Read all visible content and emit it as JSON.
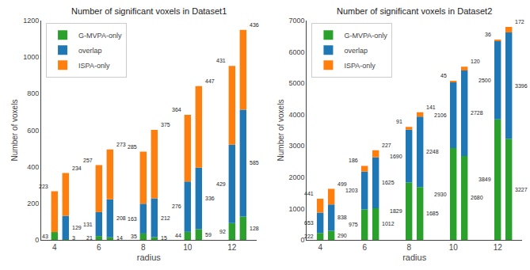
{
  "chart_data": [
    {
      "type": "bar",
      "stacked": true,
      "title": "Number of significant voxels in Dataset1",
      "xlabel": "radius",
      "ylabel": "Number of voxels",
      "categories": [
        "4",
        null,
        "6",
        null,
        "8",
        null,
        "10",
        null,
        "12",
        null
      ],
      "series": [
        {
          "name": "G-MVPA-only",
          "color": "#2ca02c",
          "values": [
            43,
            3,
            21,
            14,
            35,
            15,
            44,
            59,
            92,
            128
          ]
        },
        {
          "name": "overlap",
          "color": "#1f77b4",
          "values": [
            0,
            129,
            131,
            208,
            163,
            212,
            276,
            336,
            429,
            585
          ]
        },
        {
          "name": "ISPA-only",
          "color": "#ff7f0e",
          "values": [
            223,
            234,
            257,
            273,
            285,
            375,
            364,
            447,
            431,
            436
          ]
        }
      ],
      "ylim": [
        0,
        1200
      ],
      "yticks": [
        0,
        200,
        400,
        600,
        800,
        1000,
        1200
      ],
      "grid": false,
      "legend": "upper left",
      "data_labels": true
    },
    {
      "type": "bar",
      "stacked": true,
      "title": "Number of significant voxels in Dataset2",
      "xlabel": "radius",
      "ylabel": "Number of voxels",
      "categories": [
        "4",
        null,
        "6",
        null,
        "8",
        null,
        "10",
        null,
        "12",
        null
      ],
      "series": [
        {
          "name": "G-MVPA-only",
          "color": "#2ca02c",
          "values": [
            222,
            290,
            975,
            1012,
            1829,
            1685,
            2930,
            2680,
            3849,
            3227
          ]
        },
        {
          "name": "overlap",
          "color": "#1f77b4",
          "values": [
            653,
            838,
            1203,
            1625,
            1690,
            2248,
            2106,
            2728,
            2500,
            3396
          ]
        },
        {
          "name": "ISPA-only",
          "color": "#ff7f0e",
          "values": [
            441,
            499,
            186,
            227,
            91,
            141,
            45,
            120,
            36,
            172
          ]
        }
      ],
      "ylim": [
        0,
        7000
      ],
      "yticks": [
        0,
        1000,
        2000,
        3000,
        4000,
        5000,
        6000,
        7000
      ],
      "grid": false,
      "legend": "upper left",
      "data_labels": true
    }
  ]
}
